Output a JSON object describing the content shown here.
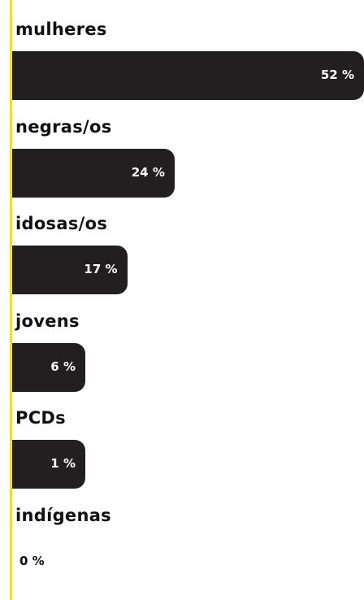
{
  "chart_data": {
    "type": "bar",
    "orientation": "horizontal",
    "categories": [
      "mulheres",
      "negras/os",
      "idosas/os",
      "jovens",
      "PCDs",
      "indígenas"
    ],
    "values": [
      52,
      24,
      17,
      6,
      1,
      0
    ],
    "value_labels": [
      "52 %",
      "24 %",
      "17 %",
      "6 %",
      "1 %",
      "0 %"
    ],
    "xlim": [
      0,
      52
    ],
    "grid": false,
    "legend": "none",
    "colors": {
      "bar": "#231f20",
      "axis": "#f2e600",
      "label_on_bar": "#ffffff",
      "text": "#111111"
    }
  }
}
